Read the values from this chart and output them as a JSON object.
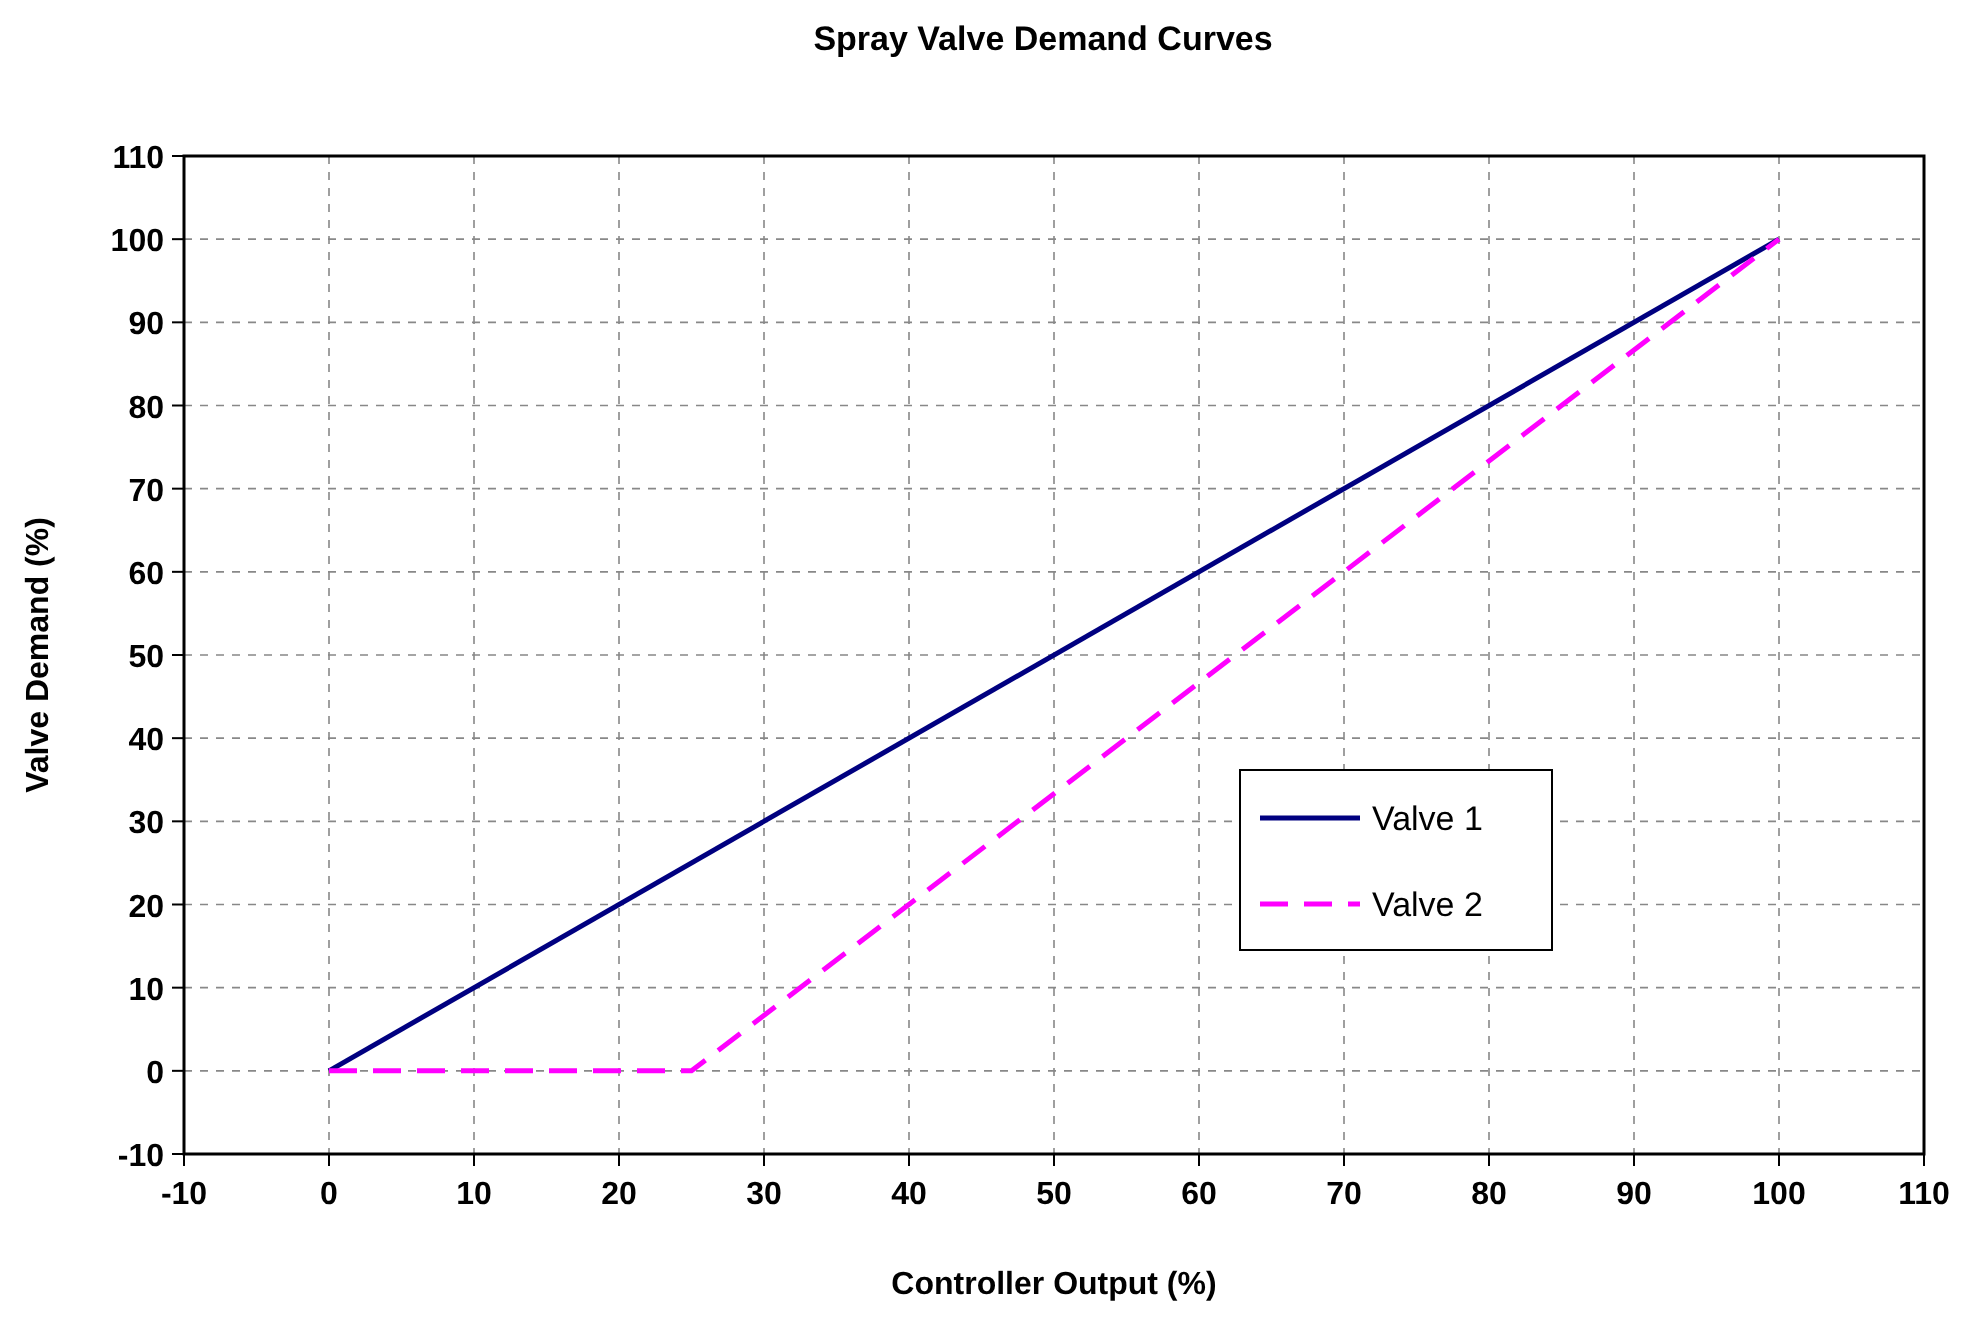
{
  "chart_data": {
    "type": "line",
    "title": "Spray Valve Demand Curves",
    "xlabel": "Controller Output (%)",
    "ylabel": "Valve Demand (%)",
    "xlim": [
      -10,
      110
    ],
    "ylim": [
      -10,
      110
    ],
    "xticks": [
      -10,
      0,
      10,
      20,
      30,
      40,
      50,
      60,
      70,
      80,
      90,
      100,
      110
    ],
    "yticks": [
      -10,
      0,
      10,
      20,
      30,
      40,
      50,
      60,
      70,
      80,
      90,
      100,
      110
    ],
    "grid": true,
    "legend": "right",
    "marker": "none",
    "series": [
      {
        "name": "Valve 1",
        "color": "#000080",
        "x": [
          0,
          100
        ],
        "values": [
          0,
          100
        ],
        "line_style": "solid"
      },
      {
        "name": "Valve 2",
        "color": "#ff00ff",
        "x": [
          0,
          25,
          100
        ],
        "values": [
          0,
          0,
          100
        ],
        "line_style": "dashed"
      }
    ]
  }
}
